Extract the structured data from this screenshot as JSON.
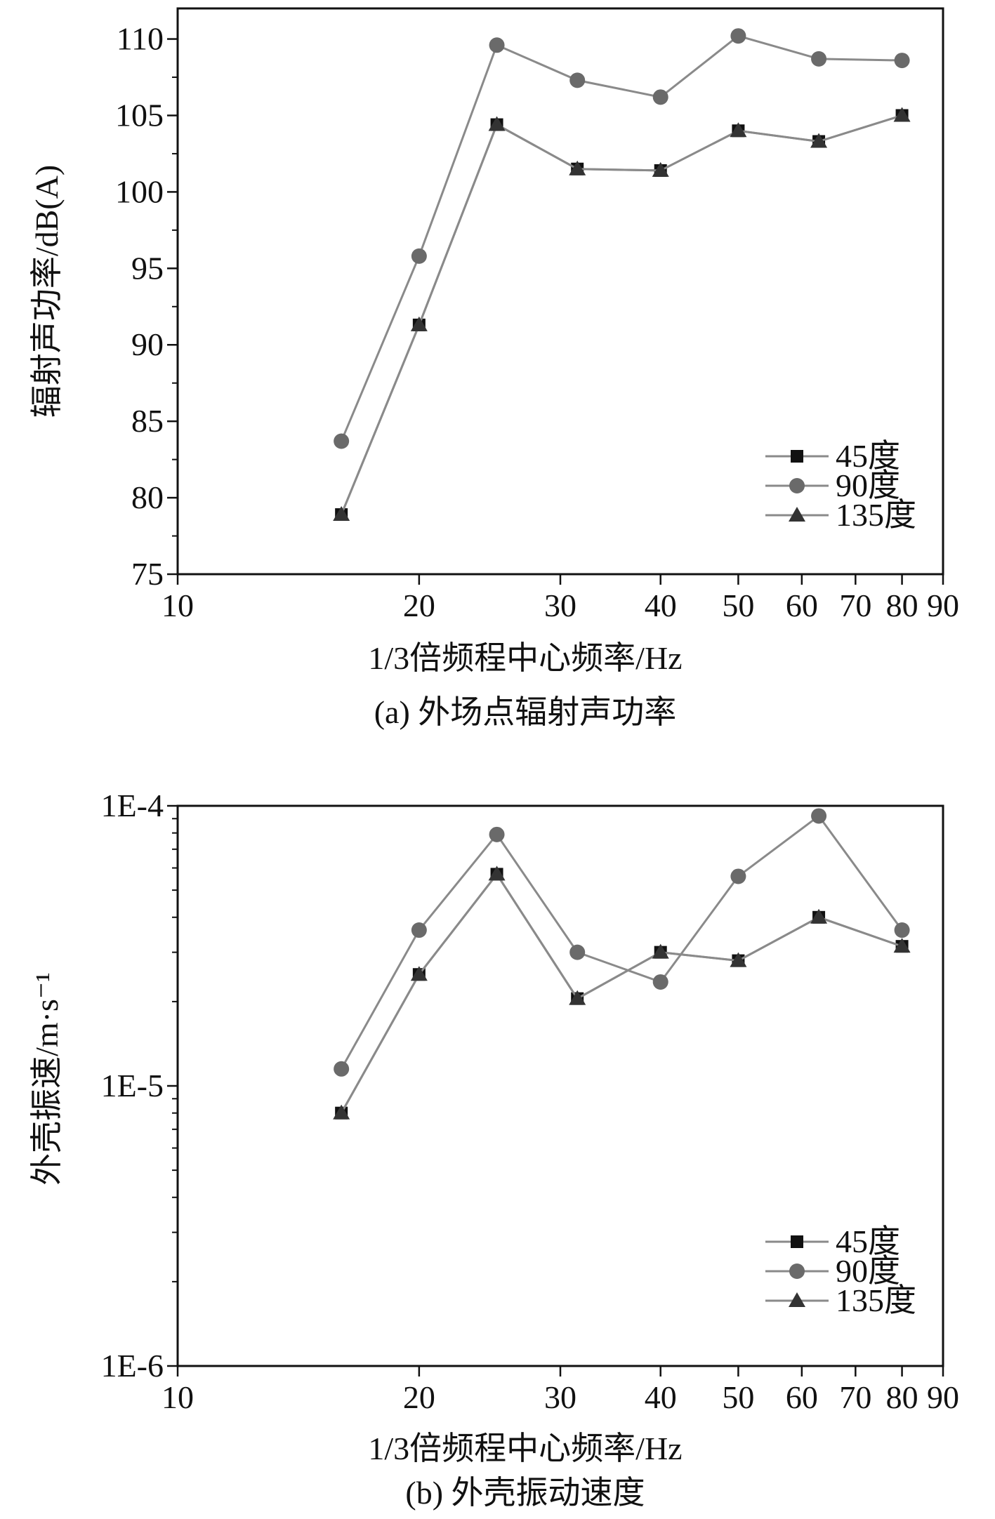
{
  "chart_data": [
    {
      "type": "line",
      "title": "",
      "caption": "(a) 外场点辐射声功率",
      "xlabel": "1/3倍频程中心频率/Hz",
      "ylabel": "辐射声功率/dB(A)",
      "xscale": "log",
      "xlim": [
        10,
        90
      ],
      "ylim": [
        75,
        112
      ],
      "yscale": "linear",
      "xticks": [
        10,
        20,
        30,
        40,
        50,
        60,
        70,
        80,
        90
      ],
      "yticks": [
        75,
        80,
        85,
        90,
        95,
        100,
        105,
        110
      ],
      "xtick_labels": [
        "10",
        "20",
        "30",
        "40",
        "50",
        "60",
        "70",
        "80",
        "90"
      ],
      "ytick_labels": [
        "75",
        "80",
        "85",
        "90",
        "95",
        "100",
        "105",
        "110"
      ],
      "x": [
        16,
        20,
        25,
        31.5,
        40,
        50,
        63,
        80
      ],
      "legend_position": "bottom-right",
      "series": [
        {
          "name": "45度",
          "marker": "square",
          "color": "#111111",
          "values": [
            78.9,
            91.3,
            104.4,
            101.5,
            101.4,
            104.0,
            103.3,
            105.0
          ]
        },
        {
          "name": "90度",
          "marker": "circle",
          "color": "#6a6a6a",
          "values": [
            83.7,
            95.8,
            109.6,
            107.3,
            106.2,
            110.2,
            108.7,
            108.6
          ]
        },
        {
          "name": "135度",
          "marker": "triangle",
          "color": "#333333",
          "values": [
            78.9,
            91.3,
            104.4,
            101.5,
            101.4,
            104.0,
            103.3,
            105.0
          ]
        }
      ]
    },
    {
      "type": "line",
      "title": "",
      "caption": "(b) 外壳振动速度",
      "xlabel": "1/3倍频程中心频率/Hz",
      "ylabel": "外壳振速/m·s⁻¹",
      "xscale": "log",
      "xlim": [
        10,
        90
      ],
      "yscale": "log",
      "ylim": [
        1e-06,
        0.0001
      ],
      "xticks": [
        10,
        20,
        30,
        40,
        50,
        60,
        70,
        80,
        90
      ],
      "yticks": [
        1e-06,
        1e-05,
        0.0001
      ],
      "xtick_labels": [
        "10",
        "20",
        "30",
        "40",
        "50",
        "60",
        "70",
        "80",
        "90"
      ],
      "ytick_labels": [
        "1E-6",
        "1E-5",
        "1E-4"
      ],
      "x": [
        16,
        20,
        25,
        31.5,
        40,
        50,
        63,
        80
      ],
      "legend_position": "bottom-right",
      "series": [
        {
          "name": "45度",
          "marker": "square",
          "color": "#111111",
          "values": [
            8e-06,
            2.5e-05,
            5.7e-05,
            2.05e-05,
            3e-05,
            2.8e-05,
            4e-05,
            3.15e-05
          ]
        },
        {
          "name": "90度",
          "marker": "circle",
          "color": "#6a6a6a",
          "values": [
            1.15e-05,
            3.6e-05,
            7.9e-05,
            3e-05,
            2.35e-05,
            5.6e-05,
            9.2e-05,
            3.6e-05
          ]
        },
        {
          "name": "135度",
          "marker": "triangle",
          "color": "#333333",
          "values": [
            8e-06,
            2.5e-05,
            5.7e-05,
            2.05e-05,
            3e-05,
            2.8e-05,
            4e-05,
            3.15e-05
          ]
        }
      ]
    }
  ]
}
